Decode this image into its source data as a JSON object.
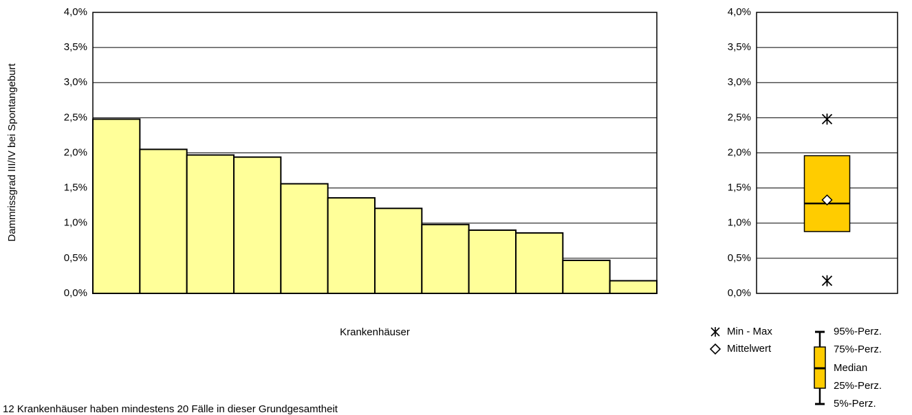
{
  "chart_data": [
    {
      "type": "bar",
      "y_label": "Dammrissgrad III/IV bei Spontangeburt",
      "x_label": "Krankenhäuser",
      "footnote": "12 Krankenhäuser haben mindestens 20 Fälle in dieser Grundgesamtheit",
      "categories": [
        null,
        null,
        null,
        null,
        null,
        null,
        null,
        null,
        null,
        null,
        null,
        null
      ],
      "values": [
        2.48,
        2.05,
        1.97,
        1.94,
        1.56,
        1.36,
        1.21,
        0.98,
        0.9,
        0.86,
        0.47,
        0.18
      ],
      "color": "#ffff99",
      "ylim": [
        0,
        4
      ],
      "yticks": [
        {
          "value": 0,
          "label": "0,0%"
        },
        {
          "value": 0.5,
          "label": "0,5%"
        },
        {
          "value": 1,
          "label": "1,0%"
        },
        {
          "value": 1.5,
          "label": "1,5%"
        },
        {
          "value": 2,
          "label": "2,0%"
        },
        {
          "value": 2.5,
          "label": "2,5%"
        },
        {
          "value": 3,
          "label": "3,0%"
        },
        {
          "value": 3.5,
          "label": "3,5%"
        },
        {
          "value": 4,
          "label": "4,0%"
        }
      ],
      "grid": true
    },
    {
      "type": "box",
      "min": 0.18,
      "q1": 0.88,
      "median": 1.28,
      "mean": 1.33,
      "q3": 1.96,
      "max": 2.48,
      "color": "#ffcc00",
      "ylim": [
        0,
        4
      ],
      "yticks": [
        {
          "value": 0,
          "label": "0,0%"
        },
        {
          "value": 0.5,
          "label": "0,5%"
        },
        {
          "value": 1,
          "label": "1,0%"
        },
        {
          "value": 1.5,
          "label": "1,5%"
        },
        {
          "value": 2,
          "label": "2,0%"
        },
        {
          "value": 2.5,
          "label": "2,5%"
        },
        {
          "value": 3,
          "label": "3,0%"
        },
        {
          "value": 3.5,
          "label": "3,5%"
        },
        {
          "value": 4,
          "label": "4,0%"
        }
      ],
      "grid": true,
      "legend": {
        "min_max": "Min - Max",
        "mean": "Mittelwert",
        "p95": "95%-Perz.",
        "p75": "75%-Perz.",
        "median": "Median",
        "p25": "25%-Perz.",
        "p5": "5%-Perz."
      }
    }
  ]
}
